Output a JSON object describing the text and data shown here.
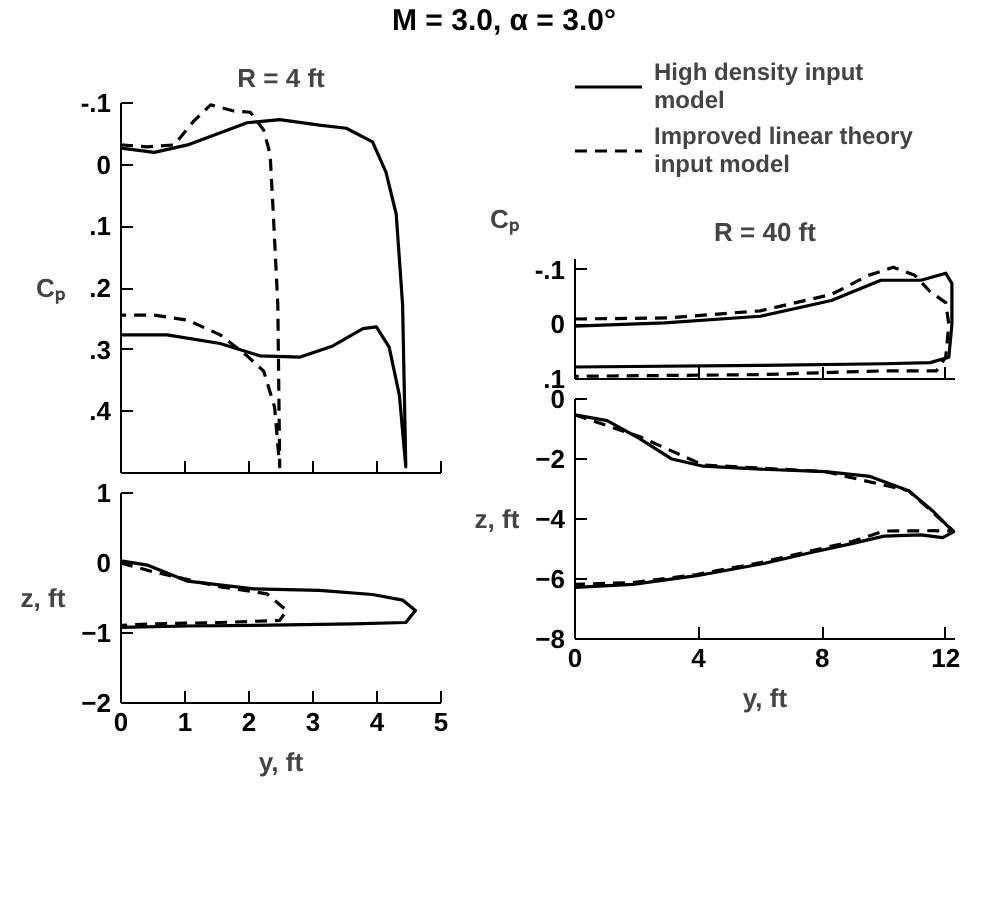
{
  "chart_data": [
    {
      "type": "line",
      "title": "M = 3.0, α = 3.0°",
      "subtitle": "R = 4 ft",
      "ylabel": "Cₚ",
      "xlim": [
        0,
        5
      ],
      "xticks": [
        0,
        1,
        2,
        3,
        4,
        5
      ],
      "ylim": [
        0.5,
        -0.1
      ],
      "yticks": [
        {
          "value": -0.1,
          "label": "-.1"
        },
        0,
        {
          "value": 0.1,
          "label": ".1"
        },
        {
          "value": 0.2,
          "label": ".2"
        },
        {
          "value": 0.3,
          "label": ".3"
        },
        {
          "value": 0.4,
          "label": ".4"
        }
      ],
      "tick_labels": "y",
      "grid": false,
      "series": [
        {
          "color": "#000000",
          "line_style": "solid",
          "x": [
            0,
            0.52,
            1.04,
            1.97,
            2.48,
            3.1,
            3.52,
            3.93,
            4.14,
            4.3,
            4.4,
            4.45,
            4.35,
            4.19,
            3.99,
            3.78,
            3.31,
            2.8,
            2.17,
            1.55,
            0.72,
            0
          ],
          "values": [
            -0.027,
            -0.02,
            -0.032,
            -0.068,
            -0.073,
            -0.064,
            -0.059,
            -0.037,
            0.012,
            0.08,
            0.227,
            0.49,
            0.374,
            0.296,
            0.263,
            0.266,
            0.294,
            0.312,
            0.31,
            0.29,
            0.276,
            0.276
          ]
        },
        {
          "color": "#000000",
          "line_style": "dashed",
          "x": [
            0,
            0.41,
            0.83,
            1.14,
            1.4,
            1.76,
            2.02,
            2.23,
            2.33,
            2.38,
            2.45,
            2.48,
            2.4,
            2.23,
            1.97,
            1.55,
            1.04,
            0.52,
            0
          ],
          "values": [
            -0.032,
            -0.029,
            -0.032,
            -0.071,
            -0.097,
            -0.087,
            -0.085,
            -0.056,
            -0.017,
            0.08,
            0.227,
            0.49,
            0.393,
            0.335,
            0.31,
            0.276,
            0.252,
            0.244,
            0.244
          ]
        }
      ]
    },
    {
      "type": "line",
      "xlabel": "y, ft",
      "ylabel": "z, ft",
      "xlim": [
        0,
        5
      ],
      "xticks": [
        0,
        1,
        2,
        3,
        4,
        5
      ],
      "ylim": [
        -2,
        1
      ],
      "yticks": [
        -2,
        -1,
        0,
        1
      ],
      "grid": false,
      "series": [
        {
          "color": "#000000",
          "line_style": "solid",
          "x": [
            0,
            0.41,
            1.04,
            2.07,
            3.1,
            3.93,
            4.4,
            4.6,
            4.45,
            3.62,
            2.07,
            1.04,
            0
          ],
          "values": [
            0.03,
            -0.03,
            -0.26,
            -0.37,
            -0.39,
            -0.45,
            -0.53,
            -0.68,
            -0.85,
            -0.87,
            -0.89,
            -0.9,
            -0.92
          ]
        },
        {
          "color": "#000000",
          "line_style": "dashed",
          "x": [
            0,
            0.52,
            1.55,
            2.28,
            2.59,
            2.48,
            1.55,
            0.52,
            0
          ],
          "values": [
            0,
            -0.13,
            -0.34,
            -0.44,
            -0.68,
            -0.82,
            -0.85,
            -0.87,
            -0.89
          ]
        }
      ]
    },
    {
      "type": "line",
      "subtitle": "R = 40 ft",
      "ylabel": "Cₚ",
      "xlim": [
        0,
        12.3
      ],
      "xticks": [
        0,
        4,
        8,
        12
      ],
      "ylim": [
        0.1,
        -0.12
      ],
      "yticks": [
        {
          "value": -0.1,
          "label": "-.1"
        },
        0,
        {
          "value": 0.1,
          "label": ".1"
        }
      ],
      "tick_labels": "y",
      "grid": false,
      "legend": "top",
      "series": [
        {
          "name": "High density input model",
          "color": "#000000",
          "line_style": "solid",
          "x": [
            0,
            2.9,
            6.0,
            8.3,
            9.9,
            11.2,
            12.0,
            12.2,
            12.2,
            12.1,
            11.5,
            10,
            6,
            0
          ],
          "values": [
            0.003,
            -0.003,
            -0.015,
            -0.044,
            -0.081,
            -0.081,
            -0.094,
            -0.075,
            0.0,
            0.06,
            0.07,
            0.072,
            0.075,
            0.078
          ]
        },
        {
          "name": "Improved linear theory input model",
          "color": "#000000",
          "line_style": "dashed",
          "x": [
            0,
            3,
            6,
            8.3,
            9.5,
            10.3,
            11.0,
            11.5,
            12,
            12.1,
            12.0,
            11.7,
            10,
            6,
            0
          ],
          "values": [
            -0.01,
            -0.012,
            -0.025,
            -0.055,
            -0.09,
            -0.105,
            -0.09,
            -0.06,
            -0.04,
            0.0,
            0.06,
            0.085,
            0.085,
            0.092,
            0.095
          ]
        }
      ]
    },
    {
      "type": "line",
      "xlabel": "y, ft",
      "ylabel": "z, ft",
      "xlim": [
        0,
        12.3
      ],
      "xticks": [
        0,
        4,
        8,
        12
      ],
      "ylim": [
        -8,
        0
      ],
      "yticks": [
        -8,
        -6,
        -4,
        -2,
        0
      ],
      "grid": false,
      "series": [
        {
          "color": "#000000",
          "line_style": "solid",
          "x": [
            0,
            1.04,
            2.08,
            3.11,
            4.15,
            6.0,
            8.1,
            9.55,
            10.8,
            11.6,
            12.25,
            11.9,
            11.2,
            10.0,
            8.96,
            7.68,
            6.02,
            3.94,
            1.87,
            0
          ],
          "values": [
            -0.53,
            -0.72,
            -1.31,
            -1.99,
            -2.24,
            -2.34,
            -2.42,
            -2.58,
            -3.06,
            -3.75,
            -4.43,
            -4.62,
            -4.53,
            -4.57,
            -4.82,
            -5.11,
            -5.5,
            -5.89,
            -6.18,
            -6.28
          ]
        },
        {
          "color": "#000000",
          "line_style": "dashed",
          "x": [
            0,
            2.08,
            4.15,
            8.1,
            10.8,
            12.25,
            11.6,
            10,
            8.96,
            6.02,
            3.94,
            1.87,
            0
          ],
          "values": [
            -0.53,
            -1.25,
            -2.2,
            -2.42,
            -3.06,
            -4.4,
            -4.39,
            -4.4,
            -4.75,
            -5.45,
            -5.85,
            -6.12,
            -6.18
          ]
        }
      ]
    }
  ]
}
